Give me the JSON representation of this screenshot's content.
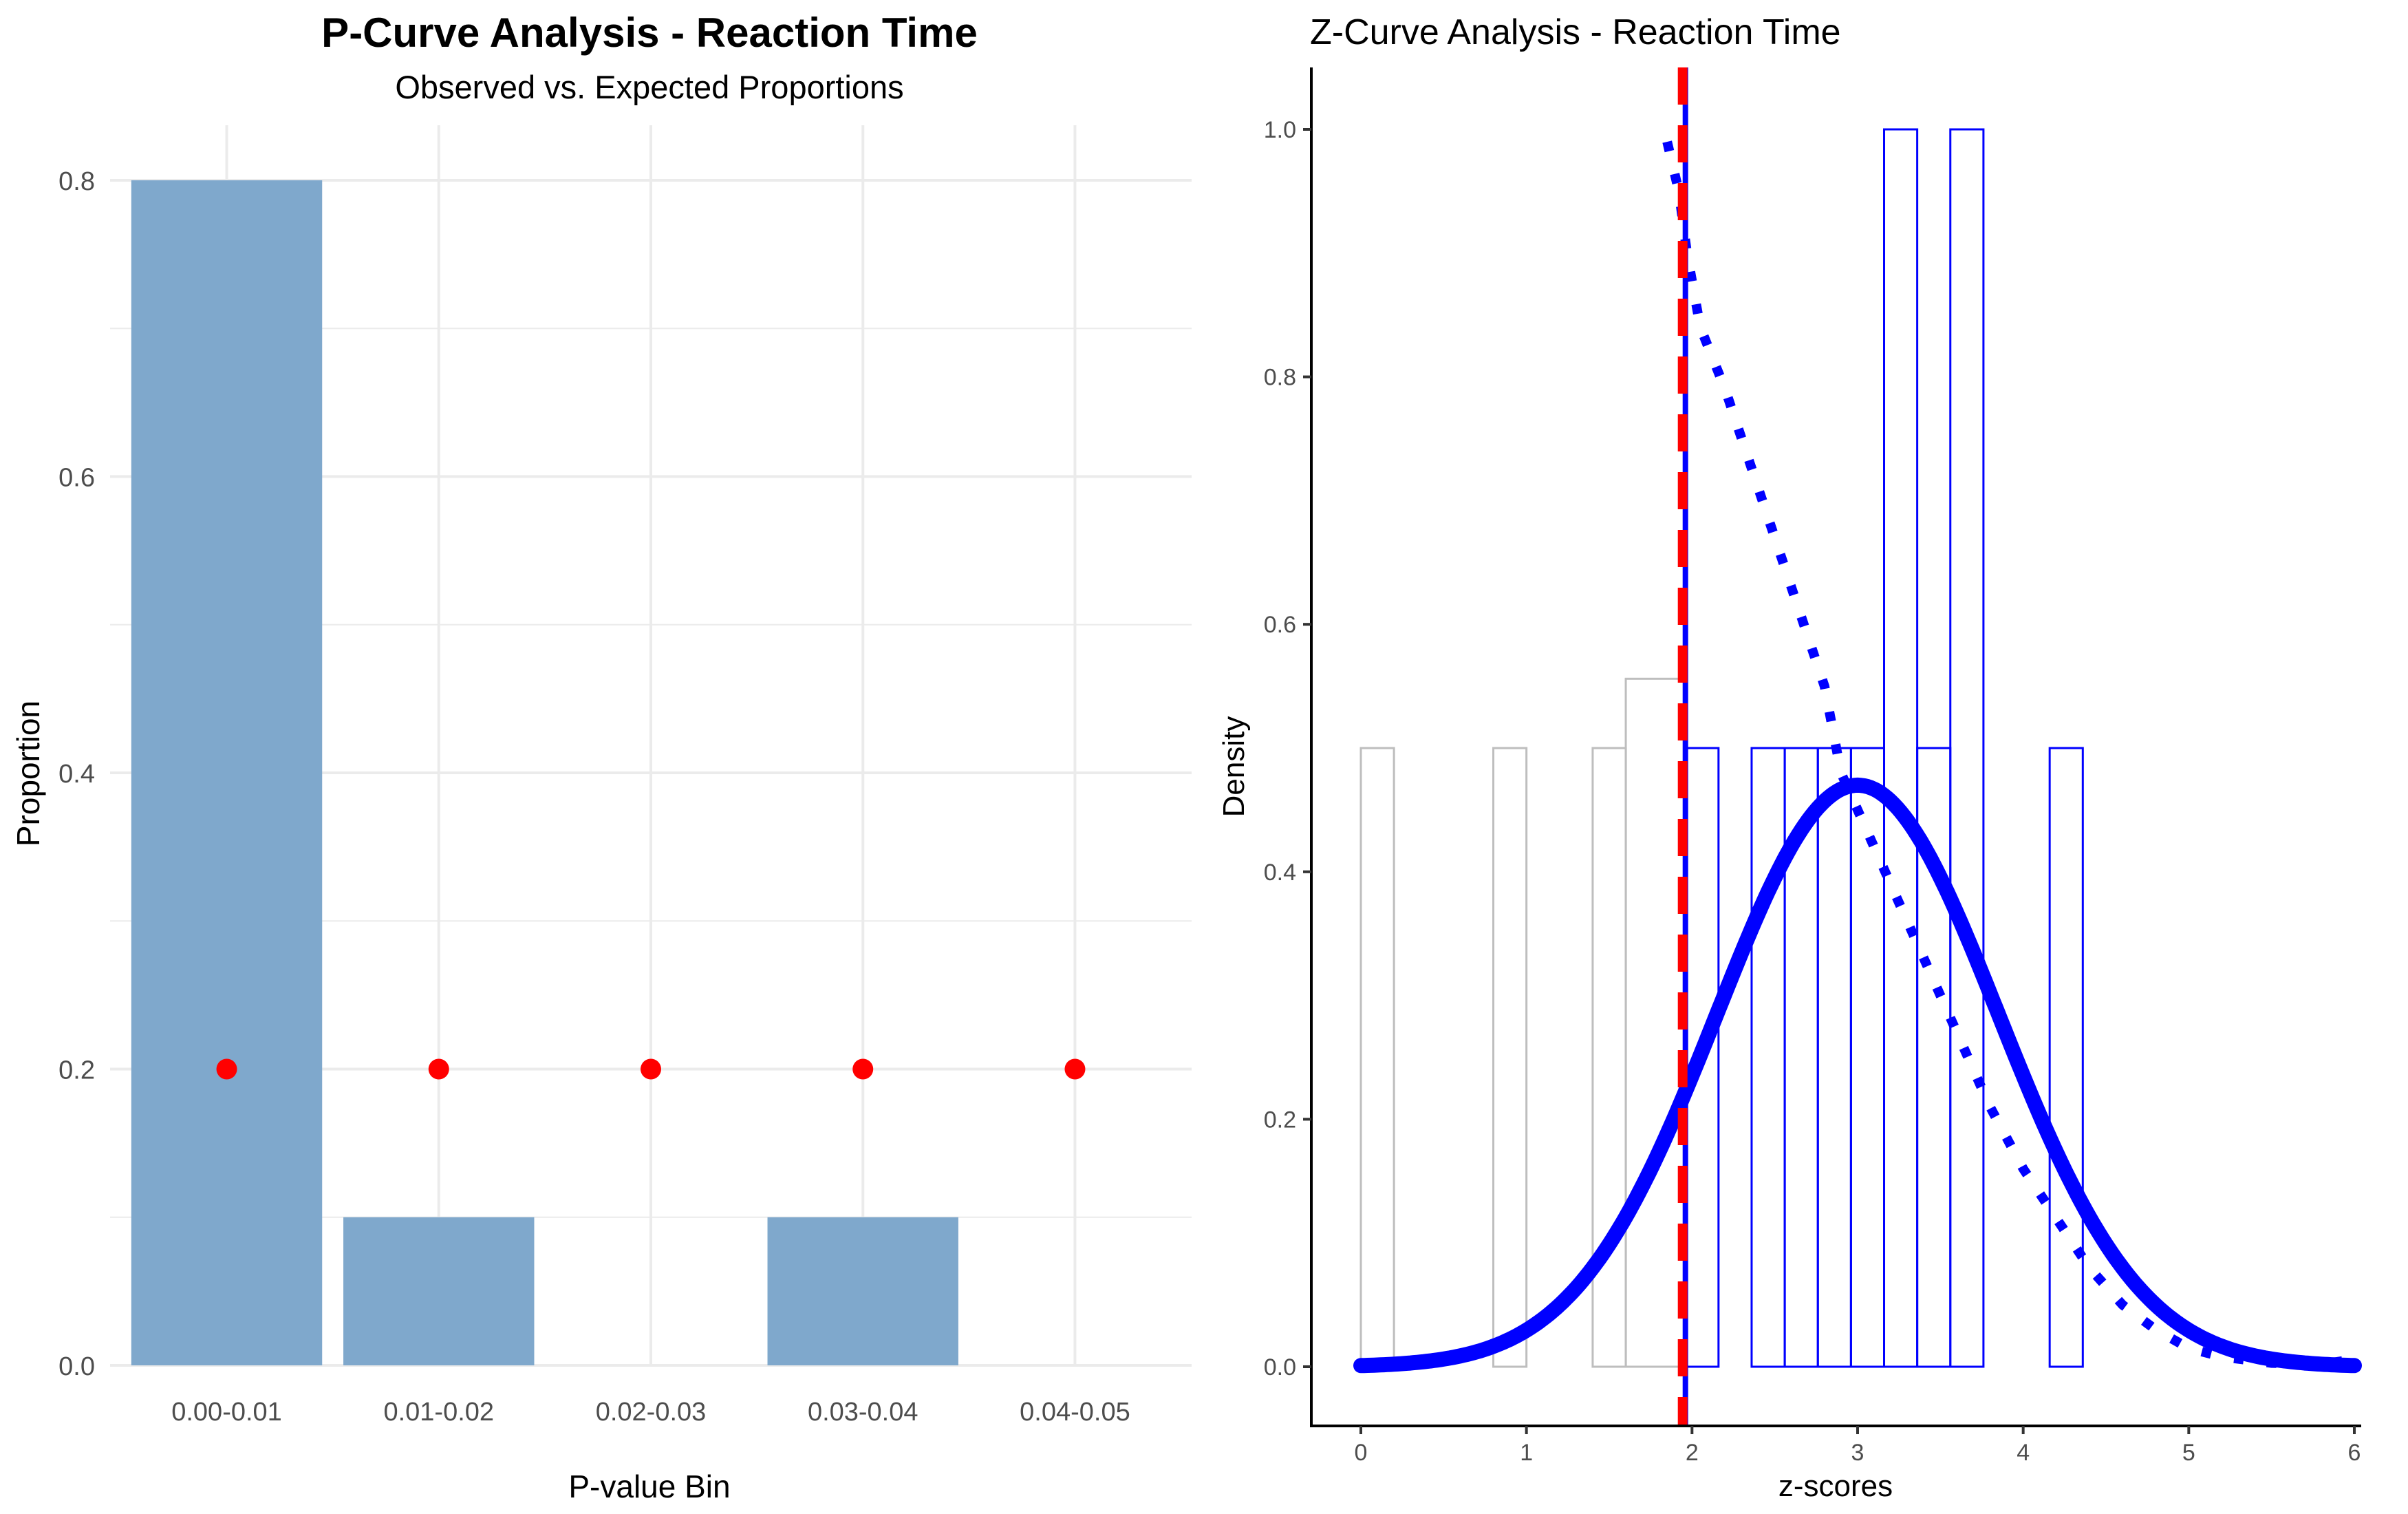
{
  "colors": {
    "bar_fill": "#7FA8CC",
    "expected_point": "#FF0000",
    "grid": "#EBEBEB",
    "axis_text": "#4D4D4D",
    "zcurve_blue": "#0000FF",
    "hist_nonsig": "#BEBEBE",
    "critical_line": "#FF0000",
    "axis_line": "#000000"
  },
  "chart_data": [
    {
      "type": "bar",
      "title": "P-Curve Analysis - Reaction Time",
      "subtitle": "Observed vs. Expected Proportions",
      "xlabel": "P-value Bin",
      "ylabel": "Proportion",
      "categories": [
        "0.00-0.01",
        "0.01-0.02",
        "0.02-0.03",
        "0.03-0.04",
        "0.04-0.05"
      ],
      "values": [
        0.8,
        0.1,
        0.0,
        0.1,
        0.0
      ],
      "expected": [
        0.2,
        0.2,
        0.2,
        0.2,
        0.2
      ],
      "ylim": [
        0,
        0.8
      ],
      "yticks": [
        0.0,
        0.2,
        0.4,
        0.6,
        0.8
      ],
      "ytick_labels": [
        "0.0",
        "0.2",
        "0.4",
        "0.6",
        "0.8"
      ],
      "grid": true
    },
    {
      "type": "line",
      "title": "Z-Curve Analysis - Reaction Time",
      "xlabel": "z-scores",
      "ylabel": "Density",
      "xlim": [
        0,
        6
      ],
      "ylim": [
        0,
        1.0
      ],
      "xticks": [
        0,
        1,
        2,
        3,
        4,
        5,
        6
      ],
      "xtick_labels": [
        "0",
        "1",
        "2",
        "3",
        "4",
        "5",
        "6"
      ],
      "yticks": [
        0.0,
        0.2,
        0.4,
        0.6,
        0.8,
        1.0
      ],
      "ytick_labels": [
        "0.0",
        "0.2",
        "0.4",
        "0.6",
        "0.8",
        "1.0"
      ],
      "grid": false,
      "critical_z": 1.96,
      "histogram_nonsignificant": [
        {
          "x0": 0.0,
          "x1": 0.2,
          "density": 0.5
        },
        {
          "x0": 0.8,
          "x1": 1.0,
          "density": 0.5
        },
        {
          "x0": 1.4,
          "x1": 1.6,
          "density": 0.5
        },
        {
          "x0": 1.6,
          "x1": 1.96,
          "density": 0.556
        }
      ],
      "histogram_significant": [
        {
          "x0": 1.96,
          "x1": 2.16,
          "density": 0.5
        },
        {
          "x0": 2.16,
          "x1": 2.36,
          "density": 0.0
        },
        {
          "x0": 2.36,
          "x1": 2.56,
          "density": 0.5
        },
        {
          "x0": 2.56,
          "x1": 2.76,
          "density": 0.5
        },
        {
          "x0": 2.76,
          "x1": 2.96,
          "density": 0.5
        },
        {
          "x0": 2.96,
          "x1": 3.16,
          "density": 0.5
        },
        {
          "x0": 3.16,
          "x1": 3.36,
          "density": 1.0
        },
        {
          "x0": 3.36,
          "x1": 3.56,
          "density": 0.5
        },
        {
          "x0": 3.56,
          "x1": 3.76,
          "density": 1.0
        },
        {
          "x0": 3.76,
          "x1": 3.96,
          "density": 0.0
        },
        {
          "x0": 3.96,
          "x1": 4.16,
          "density": 0.0
        },
        {
          "x0": 4.16,
          "x1": 4.36,
          "density": 0.5
        }
      ],
      "fitted_normal": {
        "mean": 3.0,
        "sd": 0.85,
        "peak_density": 0.47,
        "x_range": [
          0,
          6
        ]
      },
      "dotted_curve": {
        "x": [
          1.85,
          1.92,
          1.97,
          2.05,
          2.2,
          2.4,
          2.6,
          2.8,
          2.9,
          3.0,
          3.2,
          3.4,
          3.6,
          3.8,
          4.0,
          4.2,
          4.4,
          4.6,
          4.8,
          5.0,
          5.2,
          5.5,
          5.8,
          5.95
        ],
        "y": [
          0.99,
          0.95,
          0.9,
          0.84,
          0.79,
          0.71,
          0.63,
          0.55,
          0.48,
          0.45,
          0.39,
          0.33,
          0.27,
          0.21,
          0.16,
          0.12,
          0.08,
          0.05,
          0.03,
          0.015,
          0.008,
          0.003,
          0.002,
          0.005
        ]
      }
    }
  ]
}
